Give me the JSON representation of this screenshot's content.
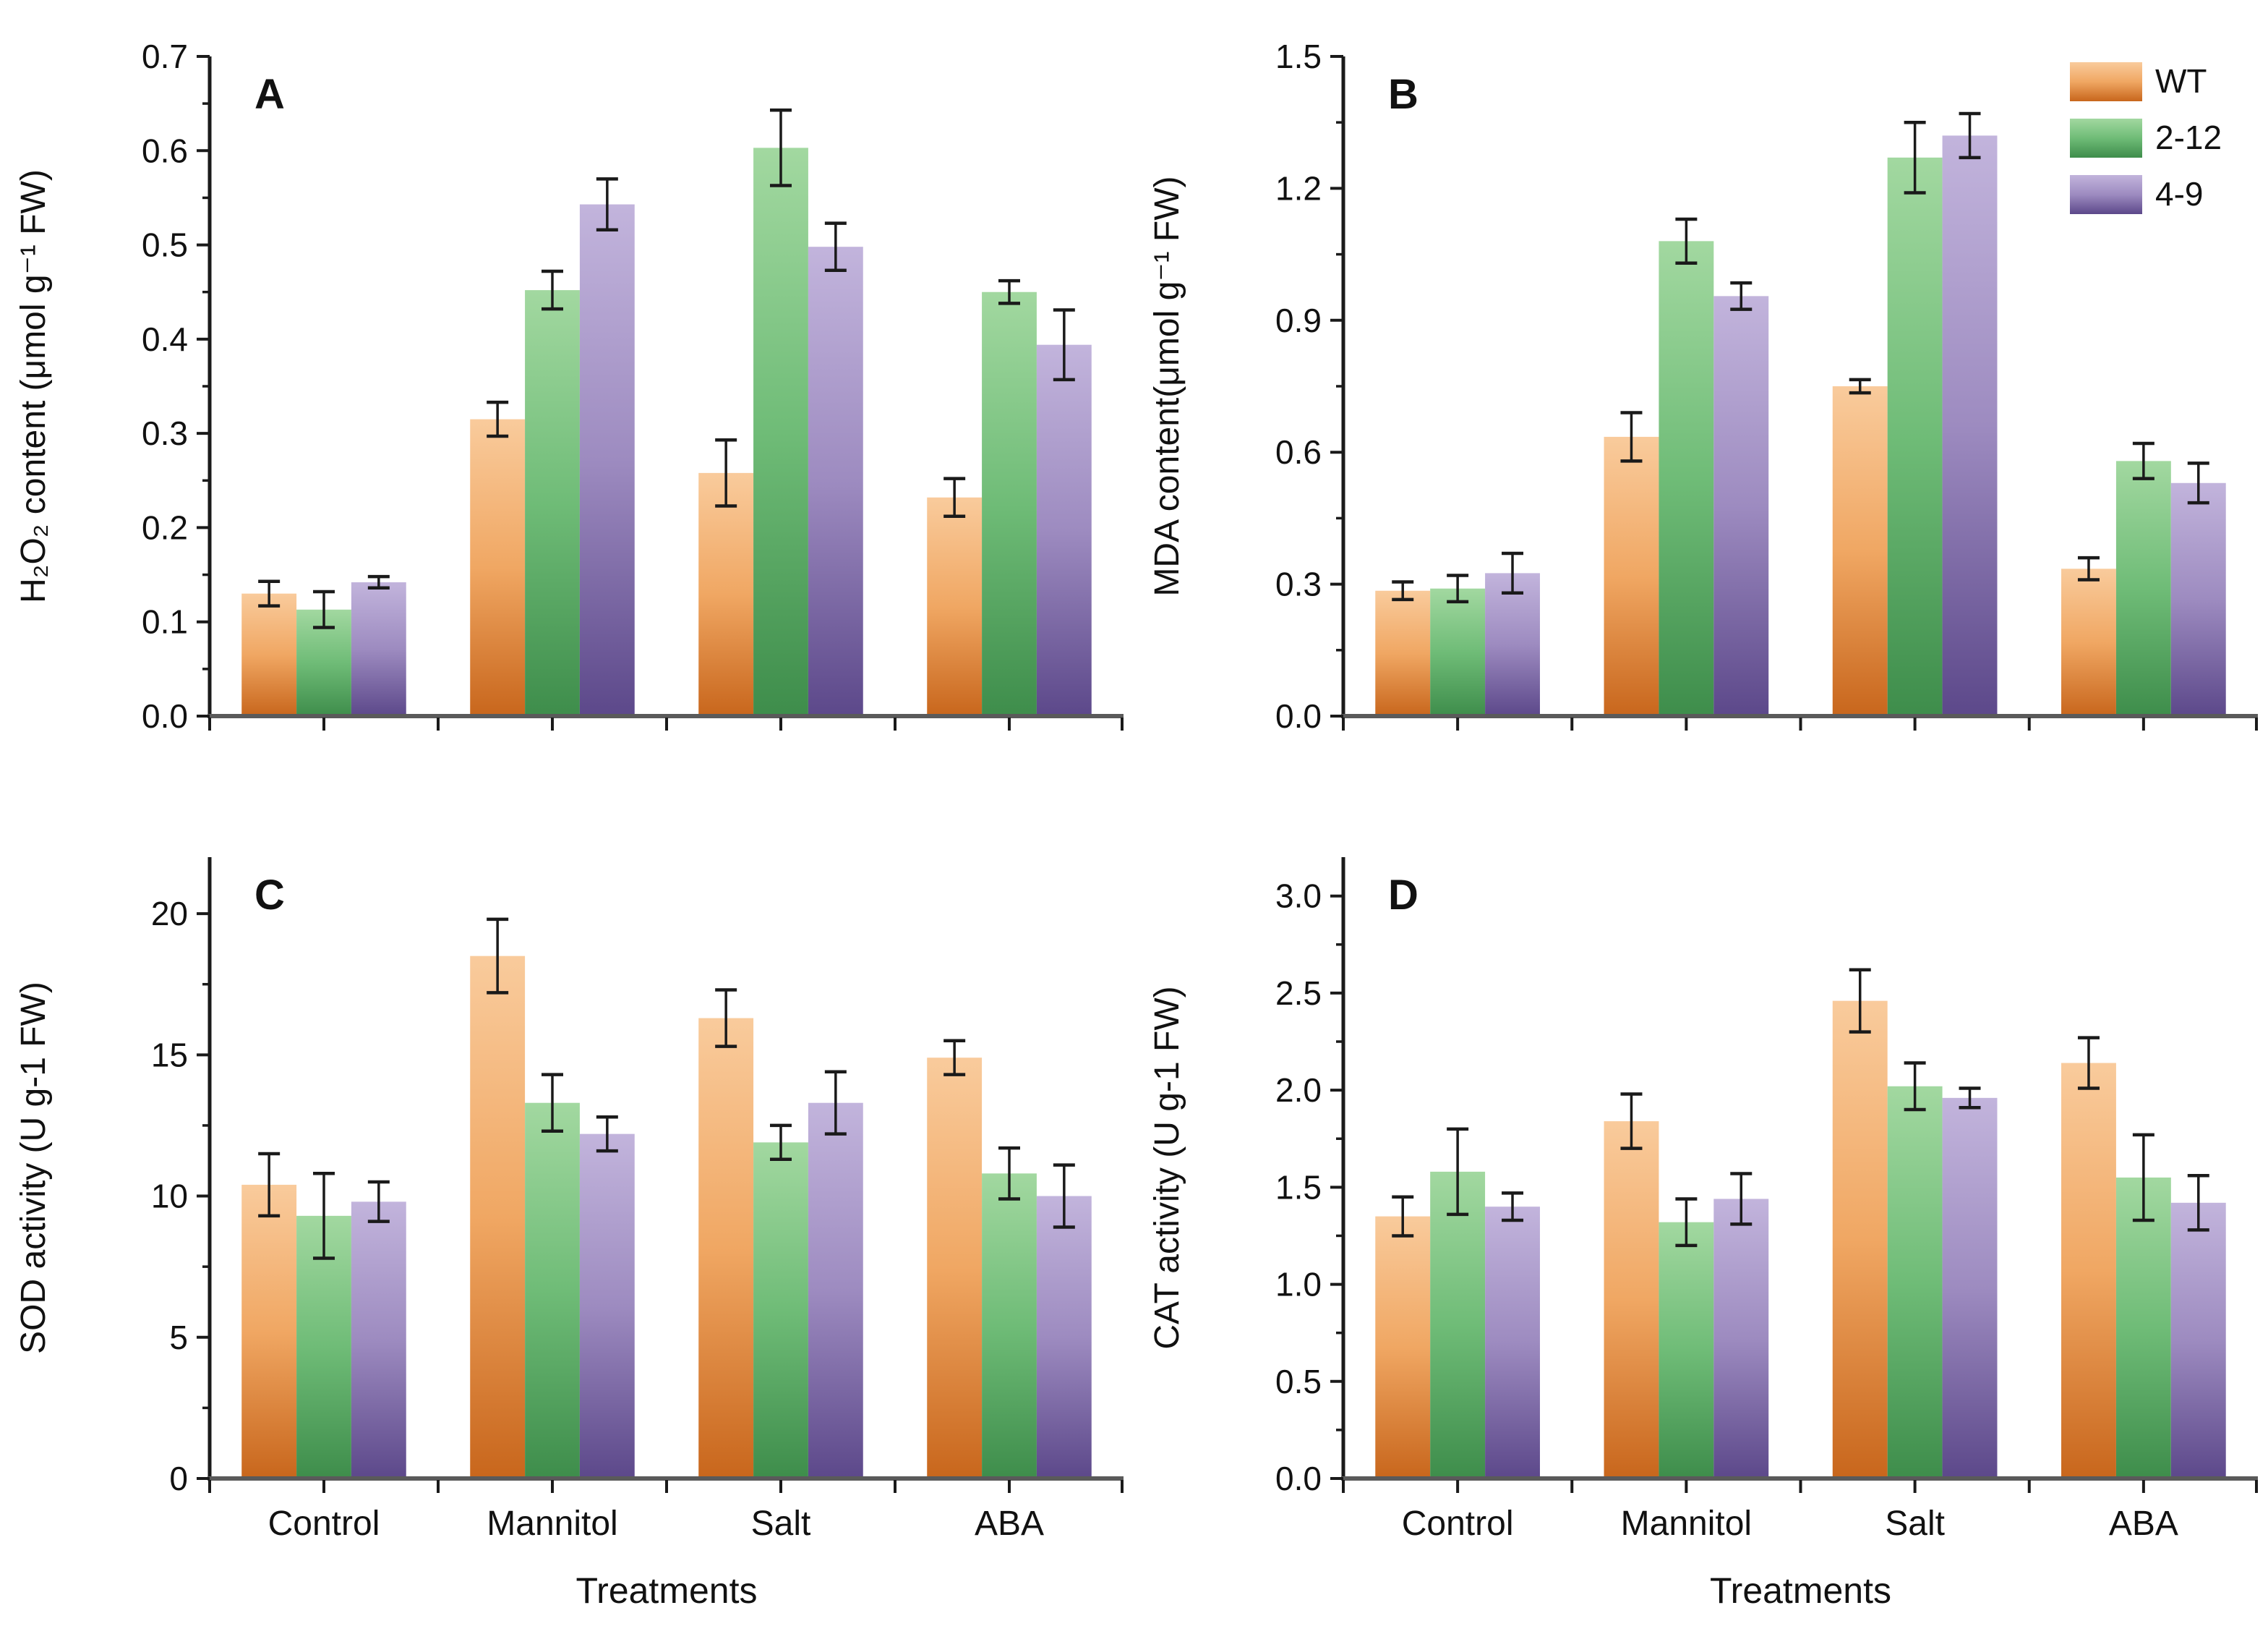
{
  "figure": {
    "x_axis_title": "Treatments",
    "categories": [
      "Control",
      "Mannitol",
      "Salt",
      "ABA"
    ],
    "legend": {
      "position": "top-right-panel-B",
      "items": [
        {
          "label": "WT",
          "color_top": "#F9CB9C",
          "color_mid": "#F0A763",
          "color_bottom": "#C8661C"
        },
        {
          "label": "2-12",
          "color_top": "#A2D8A0",
          "color_mid": "#6FBC77",
          "color_bottom": "#3E8D4B"
        },
        {
          "label": "4-9",
          "color_top": "#C2B4DC",
          "color_mid": "#9D8BC0",
          "color_bottom": "#5C488A"
        }
      ]
    },
    "errorbar_color": "#1a1a1a",
    "x_axis_color": "#5a5a5a",
    "y_axis_color": "#1a1a1a"
  },
  "chart_data": [
    {
      "type": "bar",
      "panel_label": "A",
      "ylabel": "H₂O₂ content (μmol g⁻¹ FW)",
      "xlabel": "",
      "ylim": [
        0,
        0.7
      ],
      "ytick_step": 0.1,
      "yminor_step": 0.05,
      "decimals": 1,
      "grid": false,
      "show_x_labels": false,
      "show_x_title": false,
      "show_legend": false,
      "categories": [
        "Control",
        "Mannitol",
        "Salt",
        "ABA"
      ],
      "series": [
        {
          "name": "WT",
          "values": [
            0.13,
            0.315,
            0.258,
            0.232
          ],
          "errors": [
            0.013,
            0.018,
            0.035,
            0.02
          ]
        },
        {
          "name": "2-12",
          "values": [
            0.113,
            0.452,
            0.603,
            0.45
          ],
          "errors": [
            0.019,
            0.02,
            0.04,
            0.012
          ]
        },
        {
          "name": "4-9",
          "values": [
            0.142,
            0.543,
            0.498,
            0.394
          ],
          "errors": [
            0.006,
            0.027,
            0.025,
            0.037
          ]
        }
      ]
    },
    {
      "type": "bar",
      "panel_label": "B",
      "ylabel": "MDA content(μmol g⁻¹ FW)",
      "xlabel": "",
      "ylim": [
        0,
        1.5
      ],
      "ytick_step": 0.3,
      "yminor_step": 0.15,
      "decimals": 1,
      "grid": false,
      "show_x_labels": false,
      "show_x_title": false,
      "show_legend": true,
      "categories": [
        "Control",
        "Mannitol",
        "Salt",
        "ABA"
      ],
      "series": [
        {
          "name": "WT",
          "values": [
            0.285,
            0.635,
            0.75,
            0.335
          ],
          "errors": [
            0.02,
            0.055,
            0.015,
            0.025
          ]
        },
        {
          "name": "2-12",
          "values": [
            0.29,
            1.08,
            1.27,
            0.58
          ],
          "errors": [
            0.03,
            0.05,
            0.08,
            0.04
          ]
        },
        {
          "name": "4-9",
          "values": [
            0.325,
            0.955,
            1.32,
            0.53
          ],
          "errors": [
            0.045,
            0.03,
            0.05,
            0.045
          ]
        }
      ]
    },
    {
      "type": "bar",
      "panel_label": "C",
      "ylabel": "SOD activity (U g-1 FW)",
      "xlabel": "Treatments",
      "ylim": [
        0,
        22
      ],
      "ytick_step": 5,
      "yminor_step": 2.5,
      "decimals": 0,
      "grid": false,
      "show_x_labels": true,
      "show_x_title": true,
      "show_legend": false,
      "categories": [
        "Control",
        "Mannitol",
        "Salt",
        "ABA"
      ],
      "series": [
        {
          "name": "WT",
          "values": [
            10.4,
            18.5,
            16.3,
            14.9
          ],
          "errors": [
            1.1,
            1.3,
            1.0,
            0.6
          ]
        },
        {
          "name": "2-12",
          "values": [
            9.3,
            13.3,
            11.9,
            10.8
          ],
          "errors": [
            1.5,
            1.0,
            0.6,
            0.9
          ]
        },
        {
          "name": "4-9",
          "values": [
            9.8,
            12.2,
            13.3,
            10.0
          ],
          "errors": [
            0.7,
            0.6,
            1.1,
            1.1
          ]
        }
      ]
    },
    {
      "type": "bar",
      "panel_label": "D",
      "ylabel": "CAT activity (U g-1 FW)",
      "xlabel": "Treatments",
      "ylim": [
        0,
        3.2
      ],
      "ytick_step": 0.5,
      "yminor_step": 0.25,
      "decimals": 1,
      "grid": false,
      "show_x_labels": true,
      "show_x_title": true,
      "show_legend": false,
      "categories": [
        "Control",
        "Mannitol",
        "Salt",
        "ABA"
      ],
      "series": [
        {
          "name": "WT",
          "values": [
            1.35,
            1.84,
            2.46,
            2.14
          ],
          "errors": [
            0.1,
            0.14,
            0.16,
            0.13
          ]
        },
        {
          "name": "2-12",
          "values": [
            1.58,
            1.32,
            2.02,
            1.55
          ],
          "errors": [
            0.22,
            0.12,
            0.12,
            0.22
          ]
        },
        {
          "name": "4-9",
          "values": [
            1.4,
            1.44,
            1.96,
            1.42
          ],
          "errors": [
            0.07,
            0.13,
            0.05,
            0.14
          ]
        }
      ]
    }
  ]
}
